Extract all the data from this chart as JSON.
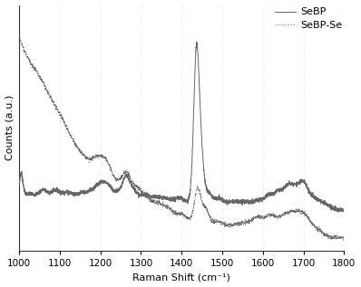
{
  "title": "",
  "xlabel": "Raman Shift (cm⁻¹)",
  "ylabel": "Counts (a.u.)",
  "xlim": [
    1000,
    1800
  ],
  "ylim": [
    0,
    1.0
  ],
  "xticks": [
    1000,
    1100,
    1200,
    1300,
    1400,
    1500,
    1600,
    1700,
    1800
  ],
  "background_color": "#ffffff",
  "grid_color": "#d0d0d0",
  "line_color": "#666666",
  "legend_labels": [
    "SeBP",
    "SeBP-Se"
  ],
  "legend_loc": "upper right"
}
